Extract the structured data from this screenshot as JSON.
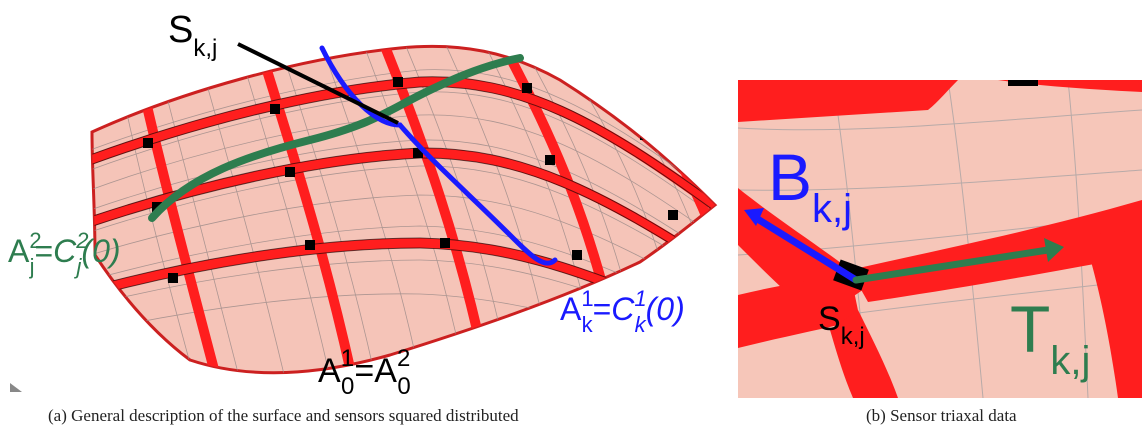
{
  "figure_a": {
    "caption": "(a)  General description of the surface and sensors squared distributed",
    "sensor_label": {
      "base": "S",
      "sub": "k,j"
    },
    "green_label": {
      "lhs_base": "A",
      "lhs_sup": "2",
      "lhs_sub": "j",
      "eq": "=",
      "rhs_base": "C",
      "rhs_sup": "2",
      "rhs_sub": "j",
      "rhs_arg": "(0)"
    },
    "blue_label": {
      "lhs_base": "A",
      "lhs_sup": "1",
      "lhs_sub": "k",
      "eq": "=",
      "rhs_base": "C",
      "rhs_sup": "1",
      "rhs_sub": "k",
      "rhs_arg": "(0)"
    },
    "origin_label": {
      "lhs_base": "A",
      "lhs_sup": "1",
      "lhs_sub": "0",
      "eq": "=",
      "rhs_base": "A",
      "rhs_sup": "2",
      "rhs_sub": "0"
    },
    "colors": {
      "surface": "#f5c4b8",
      "band": "#ff1e1e",
      "green_curve": "#2e7d4f",
      "blue_curve": "#1a1aff",
      "node": "#000000"
    }
  },
  "figure_b": {
    "caption": "(b)  Sensor triaxal data",
    "b_label": {
      "base": "B",
      "sub": "k,j"
    },
    "t_label": {
      "base": "T",
      "sub": "k,j"
    },
    "s_label": {
      "base": "S",
      "sub": "k,j"
    },
    "colors": {
      "background": "#f6c6b9",
      "band": "#ff1e1e",
      "b_vector": "#1a1aff",
      "t_vector": "#2e7d4f"
    }
  }
}
